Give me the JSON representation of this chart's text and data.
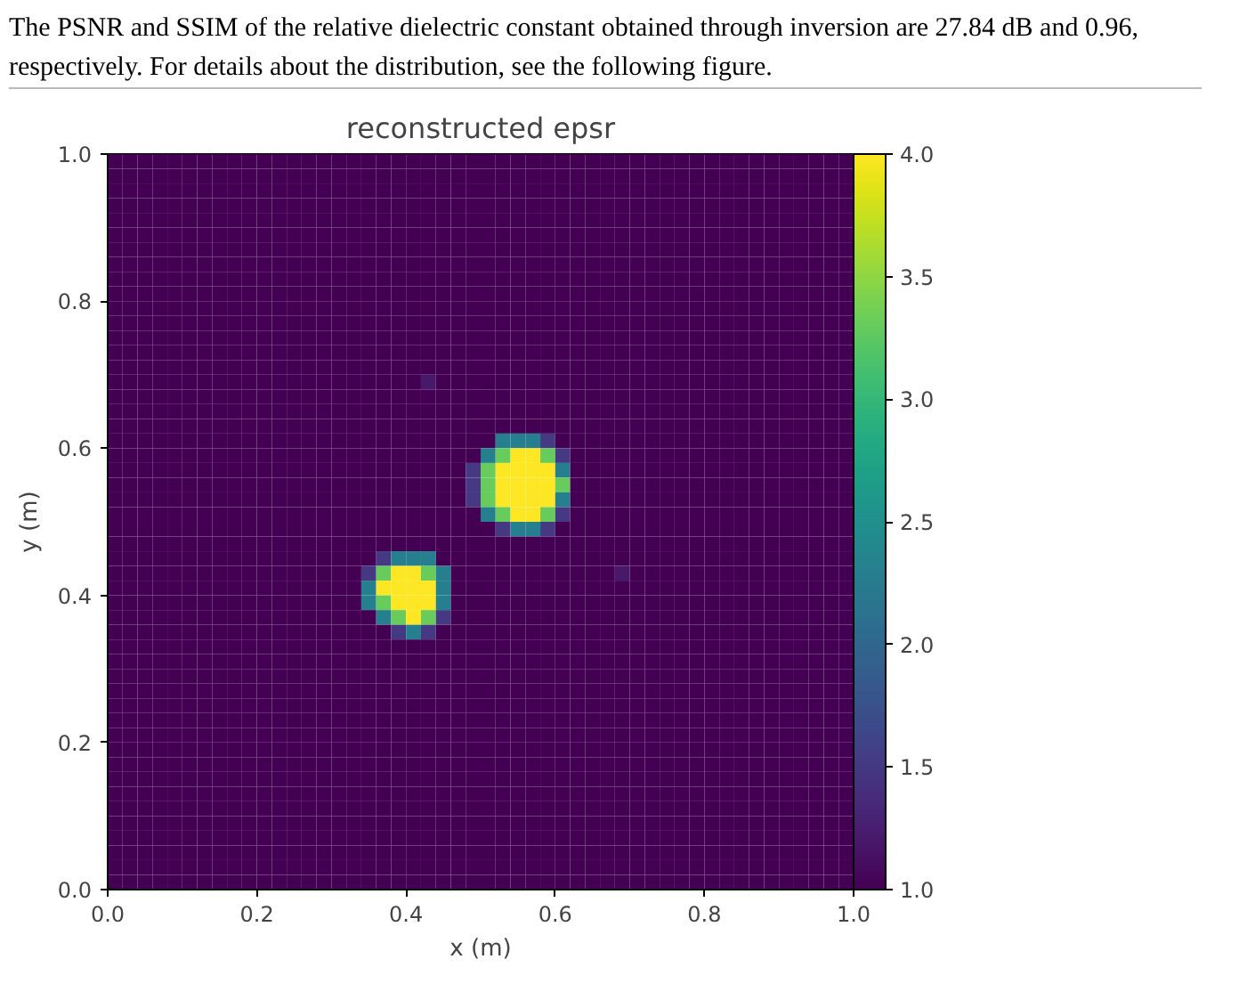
{
  "chart_data": {
    "type": "heatmap",
    "title": "reconstructed epsr",
    "xlabel": "x (m)",
    "ylabel": "y (m)",
    "annotations": [
      "The PSNR and SSIM of the relative dielectric constant obtained through inversion are 27.84 dB and 0.96, respectively. For details about the distribution, see the following figure."
    ],
    "xlim": [
      0,
      1
    ],
    "ylim": [
      0,
      1
    ],
    "xticks": [
      {
        "value": 0,
        "label": "0.0"
      },
      0.2,
      0.4,
      0.6,
      0.8,
      {
        "value": 1,
        "label": "1.0"
      }
    ],
    "yticks": [
      {
        "value": 0,
        "label": "0.0"
      },
      0.2,
      0.4,
      0.6,
      0.8,
      {
        "value": 1,
        "label": "1.0"
      }
    ],
    "clim": [
      1,
      4
    ],
    "cticks": [
      {
        "value": 1,
        "label": "1.0"
      },
      1.5,
      {
        "value": 2,
        "label": "2.0"
      },
      2.5,
      {
        "value": 3,
        "label": "3.0"
      },
      3.5,
      {
        "value": 4,
        "label": "4.0"
      }
    ],
    "cells": [
      [
        1,
        1,
        1,
        1,
        1,
        1,
        1,
        1,
        1,
        1,
        1,
        1,
        1,
        1,
        1,
        1,
        1,
        1,
        1,
        1,
        1,
        1,
        1,
        1,
        1,
        1,
        1,
        1,
        1,
        1,
        1,
        1,
        1,
        1,
        1,
        1,
        1,
        1,
        1,
        1,
        1,
        1,
        1,
        1,
        1,
        1,
        1,
        1,
        1,
        1
      ],
      [
        1,
        1,
        1,
        1,
        1,
        1,
        1,
        1,
        1,
        1,
        1,
        1,
        1,
        1,
        1,
        1,
        1,
        1,
        1,
        1,
        1,
        1,
        1,
        1,
        1,
        1,
        1,
        1,
        1,
        1,
        1,
        1,
        1,
        1,
        1,
        1,
        1,
        1,
        1,
        1,
        1,
        1,
        1,
        1,
        1,
        1,
        1,
        1,
        1,
        1
      ],
      [
        1,
        1,
        1,
        1,
        1,
        1,
        1,
        1,
        1,
        1,
        1,
        1,
        1,
        1,
        1,
        1,
        1,
        1,
        1,
        1,
        1,
        1,
        1,
        1,
        1,
        1,
        1,
        1,
        1,
        1,
        1,
        1,
        1,
        1,
        1,
        1,
        1,
        1,
        1,
        1,
        1,
        1,
        1,
        1,
        1,
        1,
        1,
        1,
        1,
        1
      ],
      [
        1,
        1,
        1,
        1,
        1,
        1,
        1,
        1,
        1,
        1,
        1,
        1,
        1,
        1,
        1,
        1,
        1,
        1,
        1,
        1,
        1,
        1,
        1,
        1,
        1,
        1,
        1,
        1,
        1,
        1,
        1,
        1,
        1,
        1,
        1,
        1,
        1,
        1,
        1,
        1,
        1,
        1,
        1,
        1,
        1,
        1,
        1,
        1,
        1,
        1
      ],
      [
        1,
        1,
        1,
        1,
        1,
        1,
        1,
        1,
        1,
        1,
        1,
        1,
        1,
        1,
        1,
        1,
        1,
        1,
        1,
        1,
        1,
        1,
        1,
        1,
        1,
        1,
        1,
        1,
        1,
        1,
        1,
        1,
        1,
        1,
        1,
        1,
        1,
        1,
        1,
        1,
        1,
        1,
        1,
        1,
        1,
        1,
        1,
        1,
        1,
        1
      ],
      [
        1,
        1,
        1,
        1,
        1,
        1,
        1,
        1,
        1,
        1,
        1,
        1,
        1,
        1,
        1,
        1,
        1,
        1,
        1,
        1,
        1,
        1,
        1,
        1,
        1,
        1,
        1,
        1,
        1,
        1,
        1,
        1,
        1,
        1,
        1,
        1,
        1,
        1,
        1,
        1,
        1,
        1,
        1,
        1,
        1,
        1,
        1,
        1,
        1,
        1
      ],
      [
        1,
        1,
        1,
        1,
        1,
        1,
        1,
        1,
        1,
        1,
        1,
        1,
        1,
        1,
        1,
        1,
        1,
        1,
        1,
        1,
        1,
        1,
        1,
        1,
        1,
        1,
        1,
        1,
        1,
        1,
        1,
        1,
        1,
        1,
        1,
        1,
        1,
        1,
        1,
        1,
        1,
        1,
        1,
        1,
        1,
        1,
        1,
        1,
        1,
        1
      ],
      [
        1,
        1,
        1,
        1,
        1,
        1,
        1,
        1,
        1,
        1,
        1,
        1,
        1,
        1,
        1,
        1,
        1,
        1,
        1,
        1,
        1,
        1,
        1,
        1,
        1,
        1,
        1,
        1,
        1,
        1,
        1,
        1,
        1,
        1,
        1,
        1,
        1,
        1,
        1,
        1,
        1,
        1,
        1,
        1,
        1,
        1,
        1,
        1,
        1,
        1
      ],
      [
        1,
        1,
        1,
        1,
        1,
        1,
        1,
        1,
        1,
        1,
        1,
        1,
        1,
        1,
        1,
        1,
        1,
        1,
        1,
        1,
        1,
        1,
        1,
        1,
        1,
        1,
        1,
        1,
        1,
        1,
        1,
        1,
        1,
        1,
        1,
        1,
        1,
        1,
        1,
        1,
        1,
        1,
        1,
        1,
        1,
        1,
        1,
        1,
        1,
        1
      ],
      [
        1,
        1,
        1,
        1,
        1,
        1,
        1,
        1,
        1,
        1,
        1,
        1,
        1,
        1,
        1,
        1,
        1,
        1,
        1,
        1,
        1,
        1,
        1,
        1,
        1,
        1,
        1,
        1,
        1,
        1,
        1,
        1,
        1,
        1,
        1,
        1,
        1,
        1,
        1,
        1,
        1,
        1,
        1,
        1,
        1,
        1,
        1,
        1,
        1,
        1
      ],
      [
        1,
        1,
        1,
        1,
        1,
        1,
        1,
        1,
        1,
        1,
        1,
        1,
        1,
        1,
        1,
        1,
        1,
        1,
        1,
        1,
        1,
        1,
        1,
        1,
        1,
        1,
        1,
        1,
        1,
        1,
        1,
        1,
        1,
        1,
        1,
        1,
        1,
        1,
        1,
        1,
        1,
        1,
        1,
        1,
        1,
        1,
        1,
        1,
        1,
        1
      ],
      [
        1,
        1,
        1,
        1,
        1,
        1,
        1,
        1,
        1,
        1,
        1,
        1,
        1,
        1,
        1,
        1,
        1,
        1,
        1,
        1,
        1,
        1,
        1,
        1,
        1,
        1,
        1,
        1,
        1,
        1,
        1,
        1,
        1,
        1,
        1,
        1,
        1,
        1,
        1,
        1,
        1,
        1,
        1,
        1,
        1,
        1,
        1,
        1,
        1,
        1
      ],
      [
        1,
        1,
        1,
        1,
        1,
        1,
        1,
        1,
        1,
        1,
        1,
        1,
        1,
        1,
        1,
        1,
        1,
        1,
        1,
        1,
        1,
        1,
        1,
        1,
        1,
        1,
        1,
        1,
        1,
        1,
        1,
        1,
        1,
        1,
        1,
        1,
        1,
        1,
        1,
        1,
        1,
        1,
        1,
        1,
        1,
        1,
        1,
        1,
        1,
        1
      ],
      [
        1,
        1,
        1,
        1,
        1,
        1,
        1,
        1,
        1,
        1,
        1,
        1,
        1,
        1,
        1,
        1,
        1,
        1,
        1,
        1,
        1,
        1,
        1,
        1,
        1,
        1,
        1,
        1,
        1,
        1,
        1,
        1,
        1,
        1,
        1,
        1,
        1,
        1,
        1,
        1,
        1,
        1,
        1,
        1,
        1,
        1,
        1,
        1,
        1,
        1
      ],
      [
        1,
        1,
        1,
        1,
        1,
        1,
        1,
        1,
        1,
        1,
        1,
        1,
        1,
        1,
        1,
        1,
        1,
        1,
        1,
        1,
        1,
        1,
        1,
        1,
        1,
        1,
        1,
        1,
        1,
        1,
        1,
        1,
        1,
        1,
        1,
        1,
        1,
        1,
        1,
        1,
        1,
        1,
        1,
        1,
        1,
        1,
        1,
        1,
        1,
        1
      ],
      [
        1,
        1,
        1,
        1,
        1,
        1,
        1,
        1,
        1,
        1,
        1,
        1,
        1,
        1,
        1,
        1,
        1,
        1,
        1,
        1,
        1,
        1.2,
        1,
        1,
        1,
        1,
        1,
        1,
        1,
        1,
        1,
        1,
        1,
        1,
        1,
        1,
        1,
        1,
        1,
        1,
        1,
        1,
        1,
        1,
        1,
        1,
        1,
        1,
        1,
        1
      ],
      [
        1,
        1,
        1,
        1,
        1,
        1,
        1,
        1,
        1,
        1,
        1,
        1,
        1,
        1,
        1,
        1,
        1,
        1,
        1,
        1,
        1,
        1,
        1,
        1,
        1,
        1,
        1,
        1,
        1,
        1,
        1,
        1,
        1,
        1,
        1,
        1,
        1,
        1,
        1,
        1,
        1,
        1,
        1,
        1,
        1,
        1,
        1,
        1,
        1,
        1
      ],
      [
        1,
        1,
        1,
        1,
        1,
        1,
        1,
        1,
        1,
        1,
        1,
        1,
        1,
        1,
        1,
        1,
        1,
        1,
        1,
        1,
        1,
        1,
        1,
        1,
        1,
        1,
        1,
        1,
        1,
        1,
        1,
        1,
        1,
        1,
        1,
        1,
        1,
        1,
        1,
        1,
        1,
        1,
        1,
        1,
        1,
        1,
        1,
        1,
        1,
        1
      ],
      [
        1,
        1,
        1,
        1,
        1,
        1,
        1,
        1,
        1,
        1,
        1,
        1,
        1,
        1,
        1,
        1,
        1,
        1,
        1,
        1,
        1,
        1,
        1,
        1,
        1,
        1,
        1,
        1,
        1,
        1,
        1,
        1,
        1,
        1,
        1,
        1,
        1,
        1,
        1,
        1,
        1,
        1,
        1,
        1,
        1,
        1,
        1,
        1,
        1,
        1
      ],
      [
        1,
        1,
        1,
        1,
        1,
        1,
        1,
        1,
        1,
        1,
        1,
        1,
        1,
        1,
        1,
        1,
        1,
        1,
        1,
        1,
        1,
        1,
        1,
        1,
        1,
        1,
        2.3,
        2.3,
        2.3,
        1.5,
        1,
        1,
        1,
        1,
        1,
        1,
        1,
        1,
        1,
        1,
        1,
        1,
        1,
        1,
        1,
        1,
        1,
        1,
        1,
        1
      ],
      [
        1,
        1,
        1,
        1,
        1,
        1,
        1,
        1,
        1,
        1,
        1,
        1,
        1,
        1,
        1,
        1,
        1,
        1,
        1,
        1,
        1,
        1,
        1,
        1,
        1,
        2.3,
        3.3,
        4,
        4,
        3.3,
        1.5,
        1,
        1,
        1,
        1,
        1,
        1,
        1,
        1,
        1,
        1,
        1,
        1,
        1,
        1,
        1,
        1,
        1,
        1,
        1
      ],
      [
        1,
        1,
        1,
        1,
        1,
        1,
        1,
        1,
        1,
        1,
        1,
        1,
        1,
        1,
        1,
        1,
        1,
        1,
        1,
        1,
        1,
        1,
        1,
        1,
        1.5,
        3.3,
        4,
        4,
        4,
        4,
        2.3,
        1,
        1,
        1,
        1,
        1,
        1,
        1,
        1,
        1,
        1,
        1,
        1,
        1,
        1,
        1,
        1,
        1,
        1,
        1
      ],
      [
        1,
        1,
        1,
        1,
        1,
        1,
        1,
        1,
        1,
        1,
        1,
        1,
        1,
        1,
        1,
        1,
        1,
        1,
        1,
        1,
        1,
        1,
        1,
        1,
        1.5,
        3.3,
        4,
        4,
        4,
        4,
        3.3,
        1,
        1,
        1,
        1,
        1,
        1,
        1,
        1,
        1,
        1,
        1,
        1,
        1,
        1,
        1,
        1,
        1,
        1,
        1
      ],
      [
        1,
        1,
        1,
        1,
        1,
        1,
        1,
        1,
        1,
        1,
        1,
        1,
        1,
        1,
        1,
        1,
        1,
        1,
        1,
        1,
        1,
        1,
        1,
        1,
        1.5,
        3.3,
        4,
        4,
        4,
        4,
        2.3,
        1,
        1,
        1,
        1,
        1,
        1,
        1,
        1,
        1,
        1,
        1,
        1,
        1,
        1,
        1,
        1,
        1,
        1,
        1
      ],
      [
        1,
        1,
        1,
        1,
        1,
        1,
        1,
        1,
        1,
        1,
        1,
        1,
        1,
        1,
        1,
        1,
        1,
        1,
        1,
        1,
        1,
        1,
        1,
        1,
        1,
        2.3,
        3.3,
        4,
        4,
        3.3,
        1.5,
        1,
        1,
        1,
        1,
        1,
        1,
        1,
        1,
        1,
        1,
        1,
        1,
        1,
        1,
        1,
        1,
        1,
        1,
        1
      ],
      [
        1,
        1,
        1,
        1,
        1,
        1,
        1,
        1,
        1,
        1,
        1,
        1,
        1,
        1,
        1,
        1,
        1,
        1,
        1,
        1,
        1,
        1,
        1,
        1,
        1,
        1,
        1.5,
        2.3,
        2.3,
        1.5,
        1,
        1,
        1,
        1,
        1,
        1,
        1,
        1,
        1,
        1,
        1,
        1,
        1,
        1,
        1,
        1,
        1,
        1,
        1,
        1
      ],
      [
        1,
        1,
        1,
        1,
        1,
        1,
        1,
        1,
        1,
        1,
        1,
        1,
        1,
        1,
        1,
        1,
        1,
        1,
        1,
        1,
        1,
        1,
        1,
        1,
        1,
        1,
        1,
        1,
        1,
        1,
        1,
        1,
        1,
        1,
        1,
        1,
        1,
        1,
        1,
        1,
        1,
        1,
        1,
        1,
        1,
        1,
        1,
        1,
        1,
        1
      ],
      [
        1,
        1,
        1,
        1,
        1,
        1,
        1,
        1,
        1,
        1,
        1,
        1,
        1,
        1,
        1,
        1,
        1,
        1,
        1.5,
        2.3,
        2.3,
        2.3,
        1,
        1,
        1,
        1,
        1,
        1,
        1,
        1,
        1,
        1,
        1,
        1,
        1,
        1,
        1,
        1,
        1,
        1,
        1,
        1,
        1,
        1,
        1,
        1,
        1,
        1,
        1,
        1
      ],
      [
        1,
        1,
        1,
        1,
        1,
        1,
        1,
        1,
        1,
        1,
        1,
        1,
        1,
        1,
        1,
        1,
        1,
        1.5,
        3.3,
        4,
        4,
        3.3,
        2.3,
        1,
        1,
        1,
        1,
        1,
        1,
        1,
        1,
        1,
        1,
        1,
        1.2,
        1,
        1,
        1,
        1,
        1,
        1,
        1,
        1,
        1,
        1,
        1,
        1,
        1,
        1,
        1
      ],
      [
        1,
        1,
        1,
        1,
        1,
        1,
        1,
        1,
        1,
        1,
        1,
        1,
        1,
        1,
        1,
        1,
        1,
        2.3,
        4,
        4,
        4,
        4,
        2.3,
        1,
        1,
        1,
        1,
        1,
        1,
        1,
        1,
        1,
        1,
        1,
        1,
        1,
        1,
        1,
        1,
        1,
        1,
        1,
        1,
        1,
        1,
        1,
        1,
        1,
        1,
        1
      ],
      [
        1,
        1,
        1,
        1,
        1,
        1,
        1,
        1,
        1,
        1,
        1,
        1,
        1,
        1,
        1,
        1,
        1,
        2.3,
        3.3,
        4,
        4,
        4,
        2.3,
        1,
        1,
        1,
        1,
        1,
        1,
        1,
        1,
        1,
        1,
        1,
        1,
        1,
        1,
        1,
        1,
        1,
        1,
        1,
        1,
        1,
        1,
        1,
        1,
        1,
        1,
        1
      ],
      [
        1,
        1,
        1,
        1,
        1,
        1,
        1,
        1,
        1,
        1,
        1,
        1,
        1,
        1,
        1,
        1,
        1,
        1,
        2.3,
        3.3,
        4,
        3.3,
        1.5,
        1,
        1,
        1,
        1,
        1,
        1,
        1,
        1,
        1,
        1,
        1,
        1,
        1,
        1,
        1,
        1,
        1,
        1,
        1,
        1,
        1,
        1,
        1,
        1,
        1,
        1,
        1
      ],
      [
        1,
        1,
        1,
        1,
        1,
        1,
        1,
        1,
        1,
        1,
        1,
        1,
        1,
        1,
        1,
        1,
        1,
        1,
        1,
        1.5,
        2.3,
        1.5,
        1,
        1,
        1,
        1,
        1,
        1,
        1,
        1,
        1,
        1,
        1,
        1,
        1,
        1,
        1,
        1,
        1,
        1,
        1,
        1,
        1,
        1,
        1,
        1,
        1,
        1,
        1,
        1
      ],
      [
        1,
        1,
        1,
        1,
        1,
        1,
        1,
        1,
        1,
        1,
        1,
        1,
        1,
        1,
        1,
        1,
        1,
        1,
        1,
        1,
        1,
        1,
        1,
        1,
        1,
        1,
        1,
        1,
        1,
        1,
        1,
        1,
        1,
        1,
        1,
        1,
        1,
        1,
        1,
        1,
        1,
        1,
        1,
        1,
        1,
        1,
        1,
        1,
        1,
        1
      ],
      [
        1,
        1,
        1,
        1,
        1,
        1,
        1,
        1,
        1,
        1,
        1,
        1,
        1,
        1,
        1,
        1,
        1,
        1,
        1,
        1,
        1,
        1,
        1,
        1,
        1,
        1,
        1,
        1,
        1,
        1,
        1,
        1,
        1,
        1,
        1,
        1,
        1,
        1,
        1,
        1,
        1,
        1,
        1,
        1,
        1,
        1,
        1,
        1,
        1,
        1
      ],
      [
        1,
        1,
        1,
        1,
        1,
        1,
        1,
        1,
        1,
        1,
        1,
        1,
        1,
        1,
        1,
        1,
        1,
        1,
        1,
        1,
        1,
        1,
        1,
        1,
        1,
        1,
        1,
        1,
        1,
        1,
        1,
        1,
        1,
        1,
        1,
        1,
        1,
        1,
        1,
        1,
        1,
        1,
        1,
        1,
        1,
        1,
        1,
        1,
        1,
        1
      ],
      [
        1,
        1,
        1,
        1,
        1,
        1,
        1,
        1,
        1,
        1,
        1,
        1,
        1,
        1,
        1,
        1,
        1,
        1,
        1,
        1,
        1,
        1,
        1,
        1,
        1,
        1,
        1,
        1,
        1,
        1,
        1,
        1,
        1,
        1,
        1,
        1,
        1,
        1,
        1,
        1,
        1,
        1,
        1,
        1,
        1,
        1,
        1,
        1,
        1,
        1
      ],
      [
        1,
        1,
        1,
        1,
        1,
        1,
        1,
        1,
        1,
        1,
        1,
        1,
        1,
        1,
        1,
        1,
        1,
        1,
        1,
        1,
        1,
        1,
        1,
        1,
        1,
        1,
        1,
        1,
        1,
        1,
        1,
        1,
        1,
        1,
        1,
        1,
        1,
        1,
        1,
        1,
        1,
        1,
        1,
        1,
        1,
        1,
        1,
        1,
        1,
        1
      ],
      [
        1,
        1,
        1,
        1,
        1,
        1,
        1,
        1,
        1,
        1,
        1,
        1,
        1,
        1,
        1,
        1,
        1,
        1,
        1,
        1,
        1,
        1,
        1,
        1,
        1,
        1,
        1,
        1,
        1,
        1,
        1,
        1,
        1,
        1,
        1,
        1,
        1,
        1,
        1,
        1,
        1,
        1,
        1,
        1,
        1,
        1,
        1,
        1,
        1,
        1
      ],
      [
        1,
        1,
        1,
        1,
        1,
        1,
        1,
        1,
        1,
        1,
        1,
        1,
        1,
        1,
        1,
        1,
        1,
        1,
        1,
        1,
        1,
        1,
        1,
        1,
        1,
        1,
        1,
        1,
        1,
        1,
        1,
        1,
        1,
        1,
        1,
        1,
        1,
        1,
        1,
        1,
        1,
        1,
        1,
        1,
        1,
        1,
        1,
        1,
        1,
        1
      ],
      [
        1,
        1,
        1,
        1,
        1,
        1,
        1,
        1,
        1,
        1,
        1,
        1,
        1,
        1,
        1,
        1,
        1,
        1,
        1,
        1,
        1,
        1,
        1,
        1,
        1,
        1,
        1,
        1,
        1,
        1,
        1,
        1,
        1,
        1,
        1,
        1,
        1,
        1,
        1,
        1,
        1,
        1,
        1,
        1,
        1,
        1,
        1,
        1,
        1,
        1
      ],
      [
        1,
        1,
        1,
        1,
        1,
        1,
        1,
        1,
        1,
        1,
        1,
        1,
        1,
        1,
        1,
        1,
        1,
        1,
        1,
        1,
        1,
        1,
        1,
        1,
        1,
        1,
        1,
        1,
        1,
        1,
        1,
        1,
        1,
        1,
        1,
        1,
        1,
        1,
        1,
        1,
        1,
        1,
        1,
        1,
        1,
        1,
        1,
        1,
        1,
        1
      ],
      [
        1,
        1,
        1,
        1,
        1,
        1,
        1,
        1,
        1,
        1,
        1,
        1,
        1,
        1,
        1,
        1,
        1,
        1,
        1,
        1,
        1,
        1,
        1,
        1,
        1,
        1,
        1,
        1,
        1,
        1,
        1,
        1,
        1,
        1,
        1,
        1,
        1,
        1,
        1,
        1,
        1,
        1,
        1,
        1,
        1,
        1,
        1,
        1,
        1,
        1
      ],
      [
        1,
        1,
        1,
        1,
        1,
        1,
        1,
        1,
        1,
        1,
        1,
        1,
        1,
        1,
        1,
        1,
        1,
        1,
        1,
        1,
        1,
        1,
        1,
        1,
        1,
        1,
        1,
        1,
        1,
        1,
        1,
        1,
        1,
        1,
        1,
        1,
        1,
        1,
        1,
        1,
        1,
        1,
        1,
        1,
        1,
        1,
        1,
        1,
        1,
        1
      ],
      [
        1,
        1,
        1,
        1,
        1,
        1,
        1,
        1,
        1,
        1,
        1,
        1,
        1,
        1,
        1,
        1,
        1,
        1,
        1,
        1,
        1,
        1,
        1,
        1,
        1,
        1,
        1,
        1,
        1,
        1,
        1,
        1,
        1,
        1,
        1,
        1,
        1,
        1,
        1,
        1,
        1,
        1,
        1,
        1,
        1,
        1,
        1,
        1,
        1,
        1
      ],
      [
        1,
        1,
        1,
        1,
        1,
        1,
        1,
        1,
        1,
        1,
        1,
        1,
        1,
        1,
        1,
        1,
        1,
        1,
        1,
        1,
        1,
        1,
        1,
        1,
        1,
        1,
        1,
        1,
        1,
        1,
        1,
        1,
        1,
        1,
        1,
        1,
        1,
        1,
        1,
        1,
        1,
        1,
        1,
        1,
        1,
        1,
        1,
        1,
        1,
        1
      ],
      [
        1,
        1,
        1,
        1,
        1,
        1,
        1,
        1,
        1,
        1,
        1,
        1,
        1,
        1,
        1,
        1,
        1,
        1,
        1,
        1,
        1,
        1,
        1,
        1,
        1,
        1,
        1,
        1,
        1,
        1,
        1,
        1,
        1,
        1,
        1,
        1,
        1,
        1,
        1,
        1,
        1,
        1,
        1,
        1,
        1,
        1,
        1,
        1,
        1,
        1
      ],
      [
        1,
        1,
        1,
        1,
        1,
        1,
        1,
        1,
        1,
        1,
        1,
        1,
        1,
        1,
        1,
        1,
        1,
        1,
        1,
        1,
        1,
        1,
        1,
        1,
        1,
        1,
        1,
        1,
        1,
        1,
        1,
        1,
        1,
        1,
        1,
        1,
        1,
        1,
        1,
        1,
        1,
        1,
        1,
        1,
        1,
        1,
        1,
        1,
        1,
        1
      ],
      [
        1,
        1,
        1,
        1,
        1,
        1,
        1,
        1,
        1,
        1,
        1,
        1,
        1,
        1,
        1,
        1,
        1,
        1,
        1,
        1,
        1,
        1,
        1,
        1,
        1,
        1,
        1,
        1,
        1,
        1,
        1,
        1,
        1,
        1,
        1,
        1,
        1,
        1,
        1,
        1,
        1,
        1,
        1,
        1,
        1,
        1,
        1,
        1,
        1,
        1
      ],
      [
        1,
        1,
        1,
        1,
        1,
        1,
        1,
        1,
        1,
        1,
        1,
        1,
        1,
        1,
        1,
        1,
        1,
        1,
        1,
        1,
        1,
        1,
        1,
        1,
        1,
        1,
        1,
        1,
        1,
        1,
        1,
        1,
        1,
        1,
        1,
        1,
        1,
        1,
        1,
        1,
        1,
        1,
        1,
        1,
        1,
        1,
        1,
        1,
        1,
        1
      ]
    ]
  }
}
